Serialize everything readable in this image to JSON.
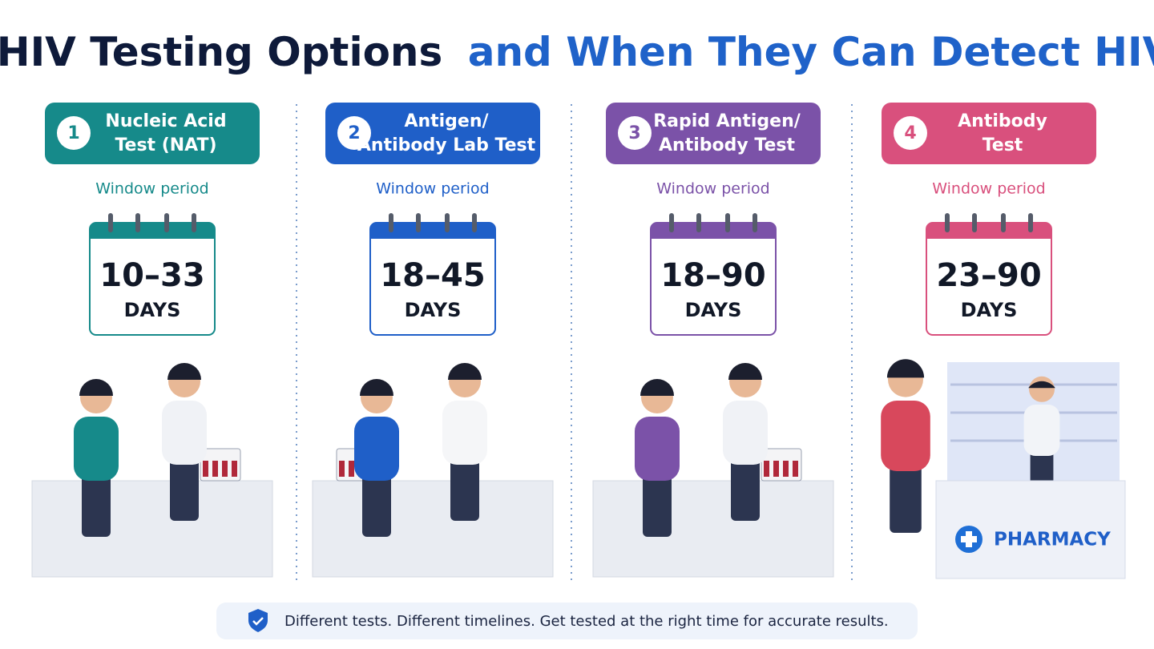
{
  "header": {
    "title_part1": "HIV Testing Options",
    "title_part2": "and When They Can Detect HIV"
  },
  "columns": [
    {
      "number": "1",
      "name_lines": [
        "Nucleic Acid",
        "Test (NAT)"
      ],
      "window_label": "Window period",
      "range": "10–33",
      "unit": "DAYS",
      "color": "#168a8a"
    },
    {
      "number": "2",
      "name_lines": [
        "Antigen/",
        "Antibody Lab Test"
      ],
      "window_label": "Window period",
      "range": "18–45",
      "unit": "DAYS",
      "color": "#1f5fc8"
    },
    {
      "number": "3",
      "name_lines": [
        "Rapid Antigen/",
        "Antibody Test"
      ],
      "window_label": "Window period",
      "range": "18–90",
      "unit": "DAYS",
      "color": "#7b52a8"
    },
    {
      "number": "4",
      "name_lines": [
        "Antibody",
        "Test"
      ],
      "window_label": "Window period",
      "range": "23–90",
      "unit": "DAYS",
      "color": "#d9507d"
    }
  ],
  "pharmacy_sign": "PHARMACY",
  "footer": {
    "text": "Different tests. Different timelines. Get tested at the right time for accurate results."
  }
}
